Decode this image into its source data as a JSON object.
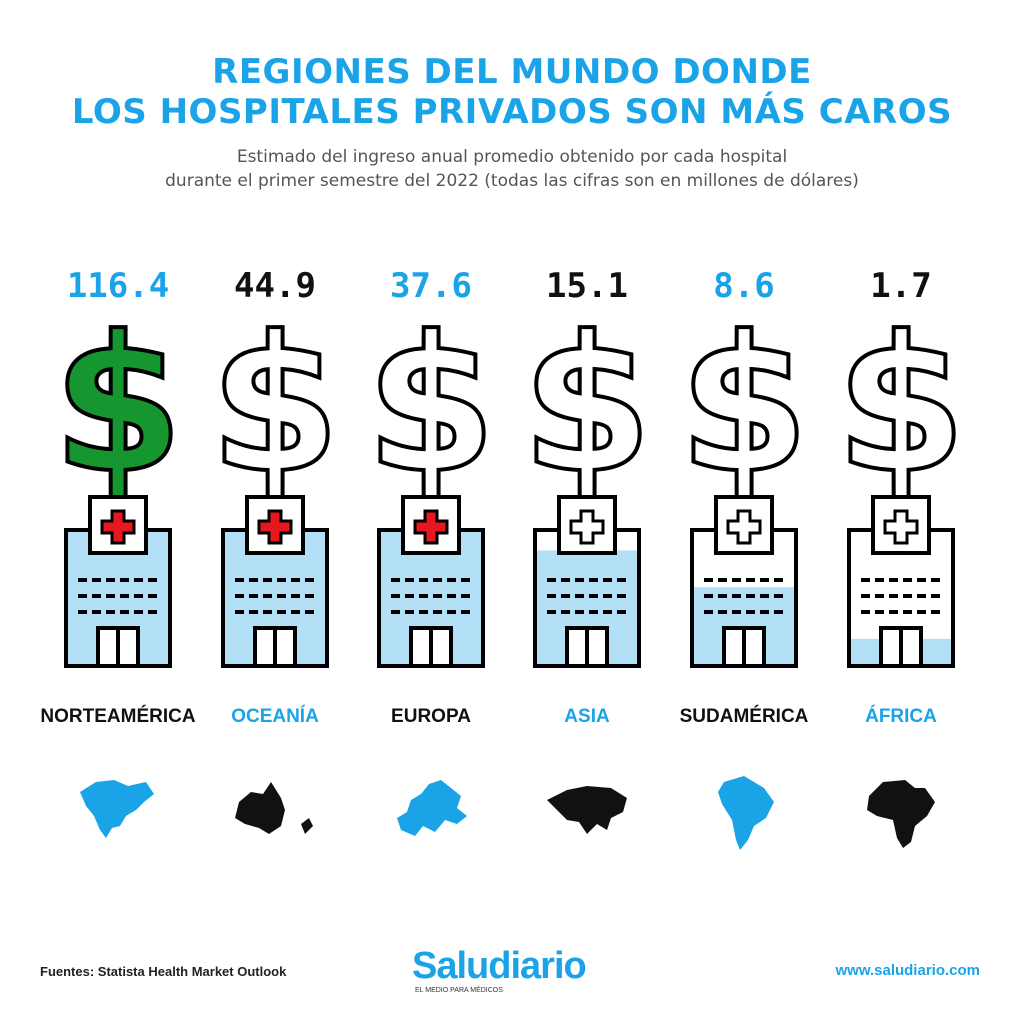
{
  "title_line1": "REGIONES DEL MUNDO DONDE",
  "title_line2": "LOS HOSPITALES PRIVADOS SON MÁS CAROS",
  "subtitle_line1": "Estimado del ingreso anual promedio obtenido por cada hospital",
  "subtitle_line2": "durante el primer semestre del 2022 (todas las cifras son en millones de dólares)",
  "colors": {
    "accent": "#1ba3e8",
    "dark": "#111111",
    "green": "#16962e",
    "fill_blue": "#b3e0f7",
    "red_cross": "#e8161e"
  },
  "chart_data": {
    "type": "bar",
    "categories": [
      "NORTEAMÉRICA",
      "OCEANÍA",
      "EUROPA",
      "ASIA",
      "SUDAMÉRICA",
      "ÁFRICA"
    ],
    "values": [
      116.4,
      44.9,
      37.6,
      15.1,
      8.6,
      1.7
    ],
    "value_labels": [
      "116.4",
      "44.9",
      "37.6",
      "15.1",
      "8.6",
      "1.7"
    ],
    "hospital_fill_fraction": [
      1.0,
      1.0,
      1.0,
      0.85,
      0.58,
      0.2
    ],
    "ylabel": "",
    "xlabel": ""
  },
  "icons": {
    "dollar": "dollar-sign-icon",
    "hospital": "hospital-icon",
    "maps": [
      "north-america-map-icon",
      "oceania-map-icon",
      "europe-map-icon",
      "asia-map-icon",
      "south-america-map-icon",
      "africa-map-icon"
    ]
  },
  "footer": {
    "sources": "Fuentes: Statista Health Market Outlook",
    "brand": "Saludiario",
    "brand_tagline": "EL MEDIO PARA MÉDICOS",
    "url": "www.saludiario.com"
  }
}
